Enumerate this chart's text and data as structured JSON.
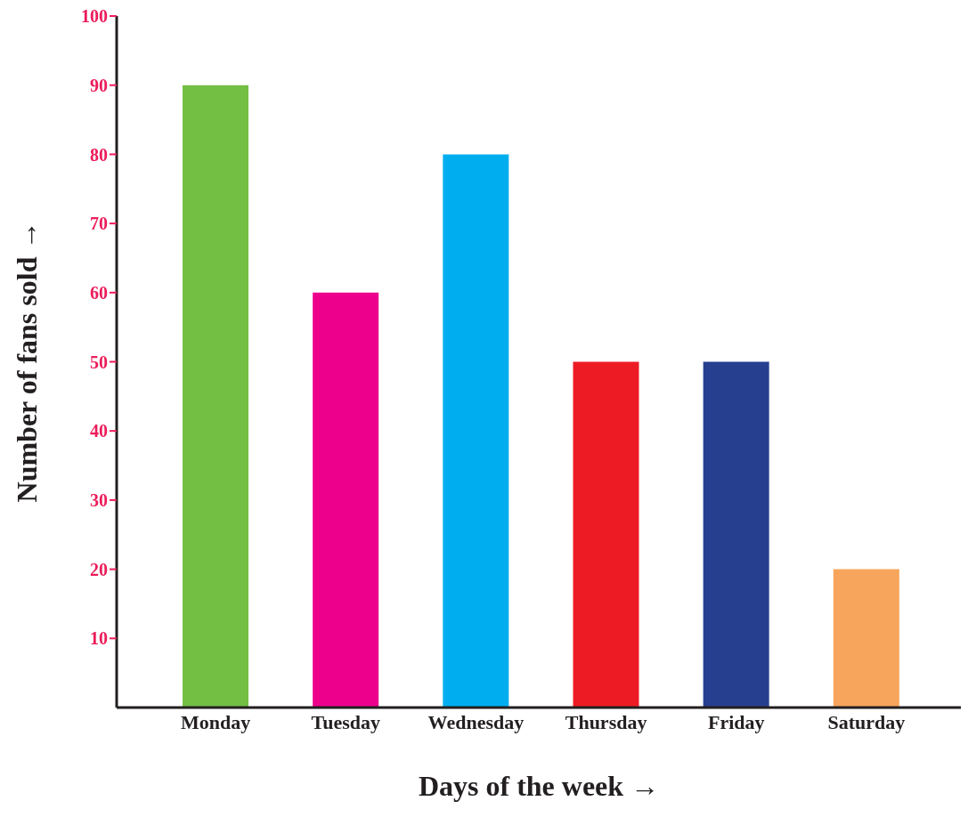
{
  "chart_data": {
    "type": "bar",
    "categories": [
      "Monday",
      "Tuesday",
      "Wednesday",
      "Thursday",
      "Friday",
      "Saturday"
    ],
    "values": [
      90,
      60,
      80,
      50,
      50,
      20
    ],
    "colors": [
      "#72bf44",
      "#ec008c",
      "#00aeef",
      "#ed1c24",
      "#263f8f",
      "#f7a55c"
    ],
    "xlabel": "Days of the week →",
    "ylabel": "Number of fans sold →",
    "ylim": [
      0,
      100
    ],
    "yticks": [
      10,
      20,
      30,
      40,
      50,
      60,
      70,
      80,
      90,
      100
    ]
  }
}
